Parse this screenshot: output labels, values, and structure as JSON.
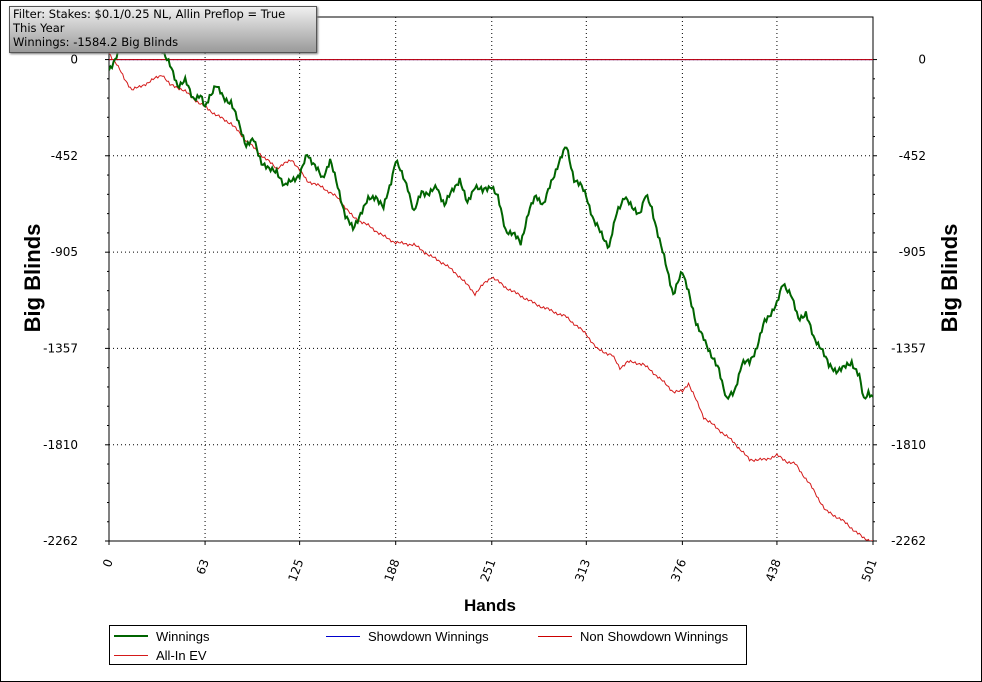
{
  "filter_box": {
    "line1": "Filter: Stakes: $0.1/0.25 NL, Allin Preflop = True",
    "line2": "This Year",
    "line3": "Winnings: -1584.2 Big Blinds"
  },
  "chart_data": {
    "type": "line",
    "xlabel": "Hands",
    "ylabel": "Big Blinds",
    "xlim": [
      0,
      501
    ],
    "ylim": [
      -2262,
      200
    ],
    "x_ticks": [
      0,
      63,
      125,
      188,
      251,
      313,
      376,
      438,
      501
    ],
    "y_ticks": [
      0,
      -452,
      -905,
      -1357,
      -1810,
      -2262
    ],
    "grid": true,
    "legend_placement": "bottom",
    "series": [
      {
        "name": "Winnings",
        "color": "#006400",
        "x": [
          0,
          8,
          15,
          22,
          30,
          35,
          40,
          45,
          50,
          55,
          60,
          63,
          66,
          70,
          75,
          80,
          85,
          90,
          95,
          100,
          105,
          110,
          115,
          120,
          125,
          130,
          135,
          140,
          145,
          150,
          155,
          160,
          165,
          170,
          175,
          180,
          185,
          188,
          192,
          196,
          200,
          205,
          210,
          215,
          220,
          225,
          230,
          235,
          240,
          245,
          251,
          255,
          260,
          265,
          270,
          275,
          280,
          285,
          290,
          295,
          300,
          305,
          310,
          313,
          318,
          323,
          328,
          333,
          338,
          343,
          348,
          352,
          356,
          360,
          365,
          370,
          376,
          380,
          385,
          390,
          395,
          400,
          405,
          410,
          415,
          420,
          425,
          430,
          438,
          442,
          447,
          452,
          457,
          462,
          467,
          472,
          477,
          482,
          487,
          492,
          495,
          498,
          501
        ],
        "values": [
          -50,
          60,
          150,
          250,
          100,
          50,
          -30,
          -120,
          -100,
          -180,
          -170,
          -230,
          -170,
          -120,
          -180,
          -200,
          -300,
          -400,
          -380,
          -480,
          -520,
          -520,
          -600,
          -560,
          -550,
          -440,
          -500,
          -560,
          -470,
          -600,
          -730,
          -800,
          -720,
          -660,
          -640,
          -700,
          -570,
          -470,
          -540,
          -600,
          -720,
          -620,
          -630,
          -600,
          -680,
          -620,
          -560,
          -680,
          -590,
          -620,
          -590,
          -650,
          -800,
          -820,
          -860,
          -720,
          -640,
          -680,
          -580,
          -480,
          -410,
          -560,
          -600,
          -640,
          -760,
          -820,
          -880,
          -720,
          -640,
          -700,
          -720,
          -640,
          -700,
          -820,
          -960,
          -1100,
          -1000,
          -1080,
          -1250,
          -1300,
          -1400,
          -1450,
          -1600,
          -1560,
          -1430,
          -1420,
          -1350,
          -1230,
          -1150,
          -1050,
          -1100,
          -1220,
          -1190,
          -1310,
          -1350,
          -1440,
          -1460,
          -1450,
          -1420,
          -1490,
          -1600,
          -1560,
          -1584
        ]
      },
      {
        "name": "Showdown Winnings",
        "color": "#0000cc",
        "x": [
          0,
          501
        ],
        "values": [
          0,
          0
        ]
      },
      {
        "name": "Non Showdown Winnings",
        "color": "#cc0000",
        "x": [
          0,
          501
        ],
        "values": [
          0,
          0
        ]
      },
      {
        "name": "All-In EV",
        "color": "#d41a1a",
        "x": [
          0,
          5,
          10,
          15,
          20,
          25,
          30,
          35,
          40,
          45,
          50,
          55,
          60,
          63,
          70,
          80,
          90,
          100,
          110,
          120,
          125,
          130,
          140,
          150,
          160,
          170,
          180,
          188,
          200,
          210,
          220,
          230,
          240,
          245,
          251,
          260,
          270,
          280,
          290,
          300,
          313,
          320,
          330,
          335,
          340,
          350,
          360,
          370,
          376,
          380,
          390,
          400,
          410,
          420,
          430,
          438,
          445,
          450,
          460,
          470,
          480,
          490,
          495,
          501
        ],
        "values": [
          30,
          -20,
          -90,
          -140,
          -130,
          -110,
          -90,
          -70,
          -120,
          -130,
          -150,
          -180,
          -210,
          -220,
          -260,
          -300,
          -380,
          -450,
          -510,
          -470,
          -520,
          -570,
          -600,
          -650,
          -740,
          -780,
          -830,
          -860,
          -870,
          -920,
          -960,
          -1020,
          -1100,
          -1060,
          -1020,
          -1070,
          -1110,
          -1150,
          -1180,
          -1210,
          -1290,
          -1360,
          -1390,
          -1450,
          -1420,
          -1430,
          -1490,
          -1560,
          -1560,
          -1520,
          -1680,
          -1740,
          -1800,
          -1880,
          -1880,
          -1860,
          -1890,
          -1900,
          -2000,
          -2120,
          -2160,
          -2220,
          -2250,
          -2262
        ]
      }
    ]
  }
}
